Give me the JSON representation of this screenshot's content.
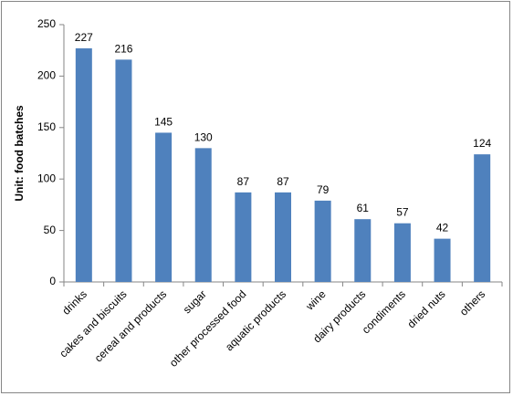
{
  "chart_data": {
    "type": "bar",
    "y_label": "Unit: food batches",
    "categories": [
      "drinks",
      "cakes and biscuits",
      "cereal and products",
      "sugar",
      "other processed food",
      "aquatic products",
      "wine",
      "dairy products",
      "condiments",
      "dried nuts",
      "others"
    ],
    "values": [
      227,
      216,
      145,
      130,
      87,
      87,
      79,
      61,
      57,
      42,
      124
    ],
    "color": "#4f81bd",
    "ylim": [
      0,
      250
    ],
    "yticks": [
      0,
      50,
      100,
      150,
      200,
      250
    ],
    "grid": false,
    "data_labels": true
  }
}
